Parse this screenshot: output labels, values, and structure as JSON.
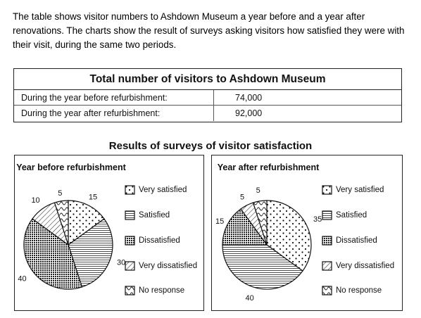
{
  "intro_text": "The table shows visitor numbers to Ashdown Museum a year before and a year after renovations. The charts show the result of surveys asking visitors how satisfied they were with their visit, during the same two periods.",
  "table": {
    "title": "Total number of visitors to Ashdown Museum",
    "rows": [
      {
        "label": "During the year before refurbishment:",
        "value": "74,000"
      },
      {
        "label": "During the year after refurbishment:",
        "value": "92,000"
      }
    ]
  },
  "survey_title": "Results of surveys of visitor satisfaction",
  "legend": [
    "Very satisfied",
    "Satisfied",
    "Dissatisfied",
    "Very dissatisfied",
    "No response"
  ],
  "chart_data": [
    {
      "type": "pie",
      "title": "Year before refurbishment",
      "labels": [
        "Very satisfied",
        "Satisfied",
        "Dissatisfied",
        "Very dissatisfied",
        "No response"
      ],
      "values": [
        15,
        30,
        40,
        10,
        5
      ],
      "value_labels": [
        "15",
        "30",
        "40",
        "10",
        "5"
      ]
    },
    {
      "type": "pie",
      "title": "Year after refurbishment",
      "labels": [
        "Very satisfied",
        "Satisfied",
        "Dissatisfied",
        "Very dissatisfied",
        "No response"
      ],
      "values": [
        35,
        40,
        15,
        5,
        5
      ],
      "value_labels": [
        "35",
        "40",
        "15",
        "5",
        "5"
      ]
    }
  ]
}
